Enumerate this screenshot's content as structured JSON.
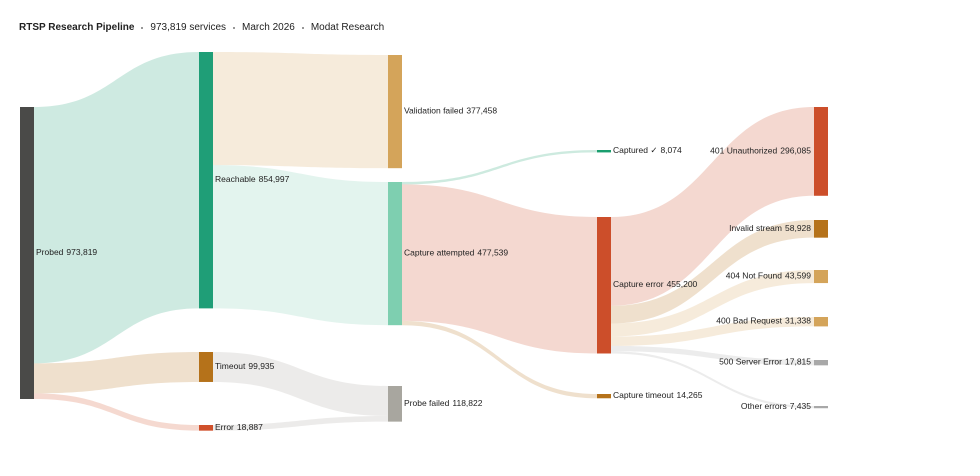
{
  "chart_data": {
    "type": "sankey",
    "title": "RTSP Research Pipeline",
    "subtitle": [
      "973,819 services",
      "March 2026",
      "Modat Research"
    ],
    "nodes": [
      {
        "name": "Probed",
        "value": 973819,
        "value_label": "973,819",
        "color": "#4a4a48"
      },
      {
        "name": "Reachable",
        "value": 854997,
        "value_label": "854,997",
        "color": "#1f9e77"
      },
      {
        "name": "Timeout",
        "value": 99935,
        "value_label": "99,935",
        "color": "#b5721a"
      },
      {
        "name": "Error",
        "value": 18887,
        "value_label": "18,887",
        "color": "#d0502b"
      },
      {
        "name": "Validation failed",
        "value": 377458,
        "value_label": "377,458",
        "color": "#d4a45a"
      },
      {
        "name": "Capture attempted",
        "value": 477539,
        "value_label": "477,539",
        "color": "#7ecfb0"
      },
      {
        "name": "Probe failed",
        "value": 118822,
        "value_label": "118,822",
        "color": "#a8a69f"
      },
      {
        "name": "Captured ✓",
        "value": 8074,
        "value_label": "8,074",
        "color": "#1a9e6e"
      },
      {
        "name": "Capture error",
        "value": 455200,
        "value_label": "455,200",
        "color": "#cc4e2a"
      },
      {
        "name": "Capture timeout",
        "value": 14265,
        "value_label": "14,265",
        "color": "#b5721a"
      },
      {
        "name": "401 Unauthorized",
        "value": 296085,
        "value_label": "296,085",
        "color": "#cc4e2a"
      },
      {
        "name": "Invalid stream",
        "value": 58928,
        "value_label": "58,928",
        "color": "#b5721a"
      },
      {
        "name": "404 Not Found",
        "value": 43599,
        "value_label": "43,599",
        "color": "#d4a45a"
      },
      {
        "name": "400 Bad Request",
        "value": 31338,
        "value_label": "31,338",
        "color": "#d4a45a"
      },
      {
        "name": "500 Server Error",
        "value": 17815,
        "value_label": "17,815",
        "color": "#a8a8a8"
      },
      {
        "name": "Other errors",
        "value": 7435,
        "value_label": "7,435",
        "color": "#a8a8a8"
      }
    ],
    "links": [
      {
        "source": 0,
        "target": 1,
        "value": 854997
      },
      {
        "source": 0,
        "target": 2,
        "value": 99935
      },
      {
        "source": 0,
        "target": 3,
        "value": 18887
      },
      {
        "source": 1,
        "target": 4,
        "value": 377458
      },
      {
        "source": 1,
        "target": 5,
        "value": 477539
      },
      {
        "source": 2,
        "target": 6,
        "value": 99935
      },
      {
        "source": 3,
        "target": 6,
        "value": 18887
      },
      {
        "source": 5,
        "target": 7,
        "value": 8074
      },
      {
        "source": 5,
        "target": 8,
        "value": 455200
      },
      {
        "source": 5,
        "target": 9,
        "value": 14265
      },
      {
        "source": 8,
        "target": 10,
        "value": 296085
      },
      {
        "source": 8,
        "target": 11,
        "value": 58928
      },
      {
        "source": 8,
        "target": 12,
        "value": 43599
      },
      {
        "source": 8,
        "target": 13,
        "value": 31338
      },
      {
        "source": 8,
        "target": 14,
        "value": 17815
      },
      {
        "source": 8,
        "target": 15,
        "value": 7435
      }
    ]
  }
}
